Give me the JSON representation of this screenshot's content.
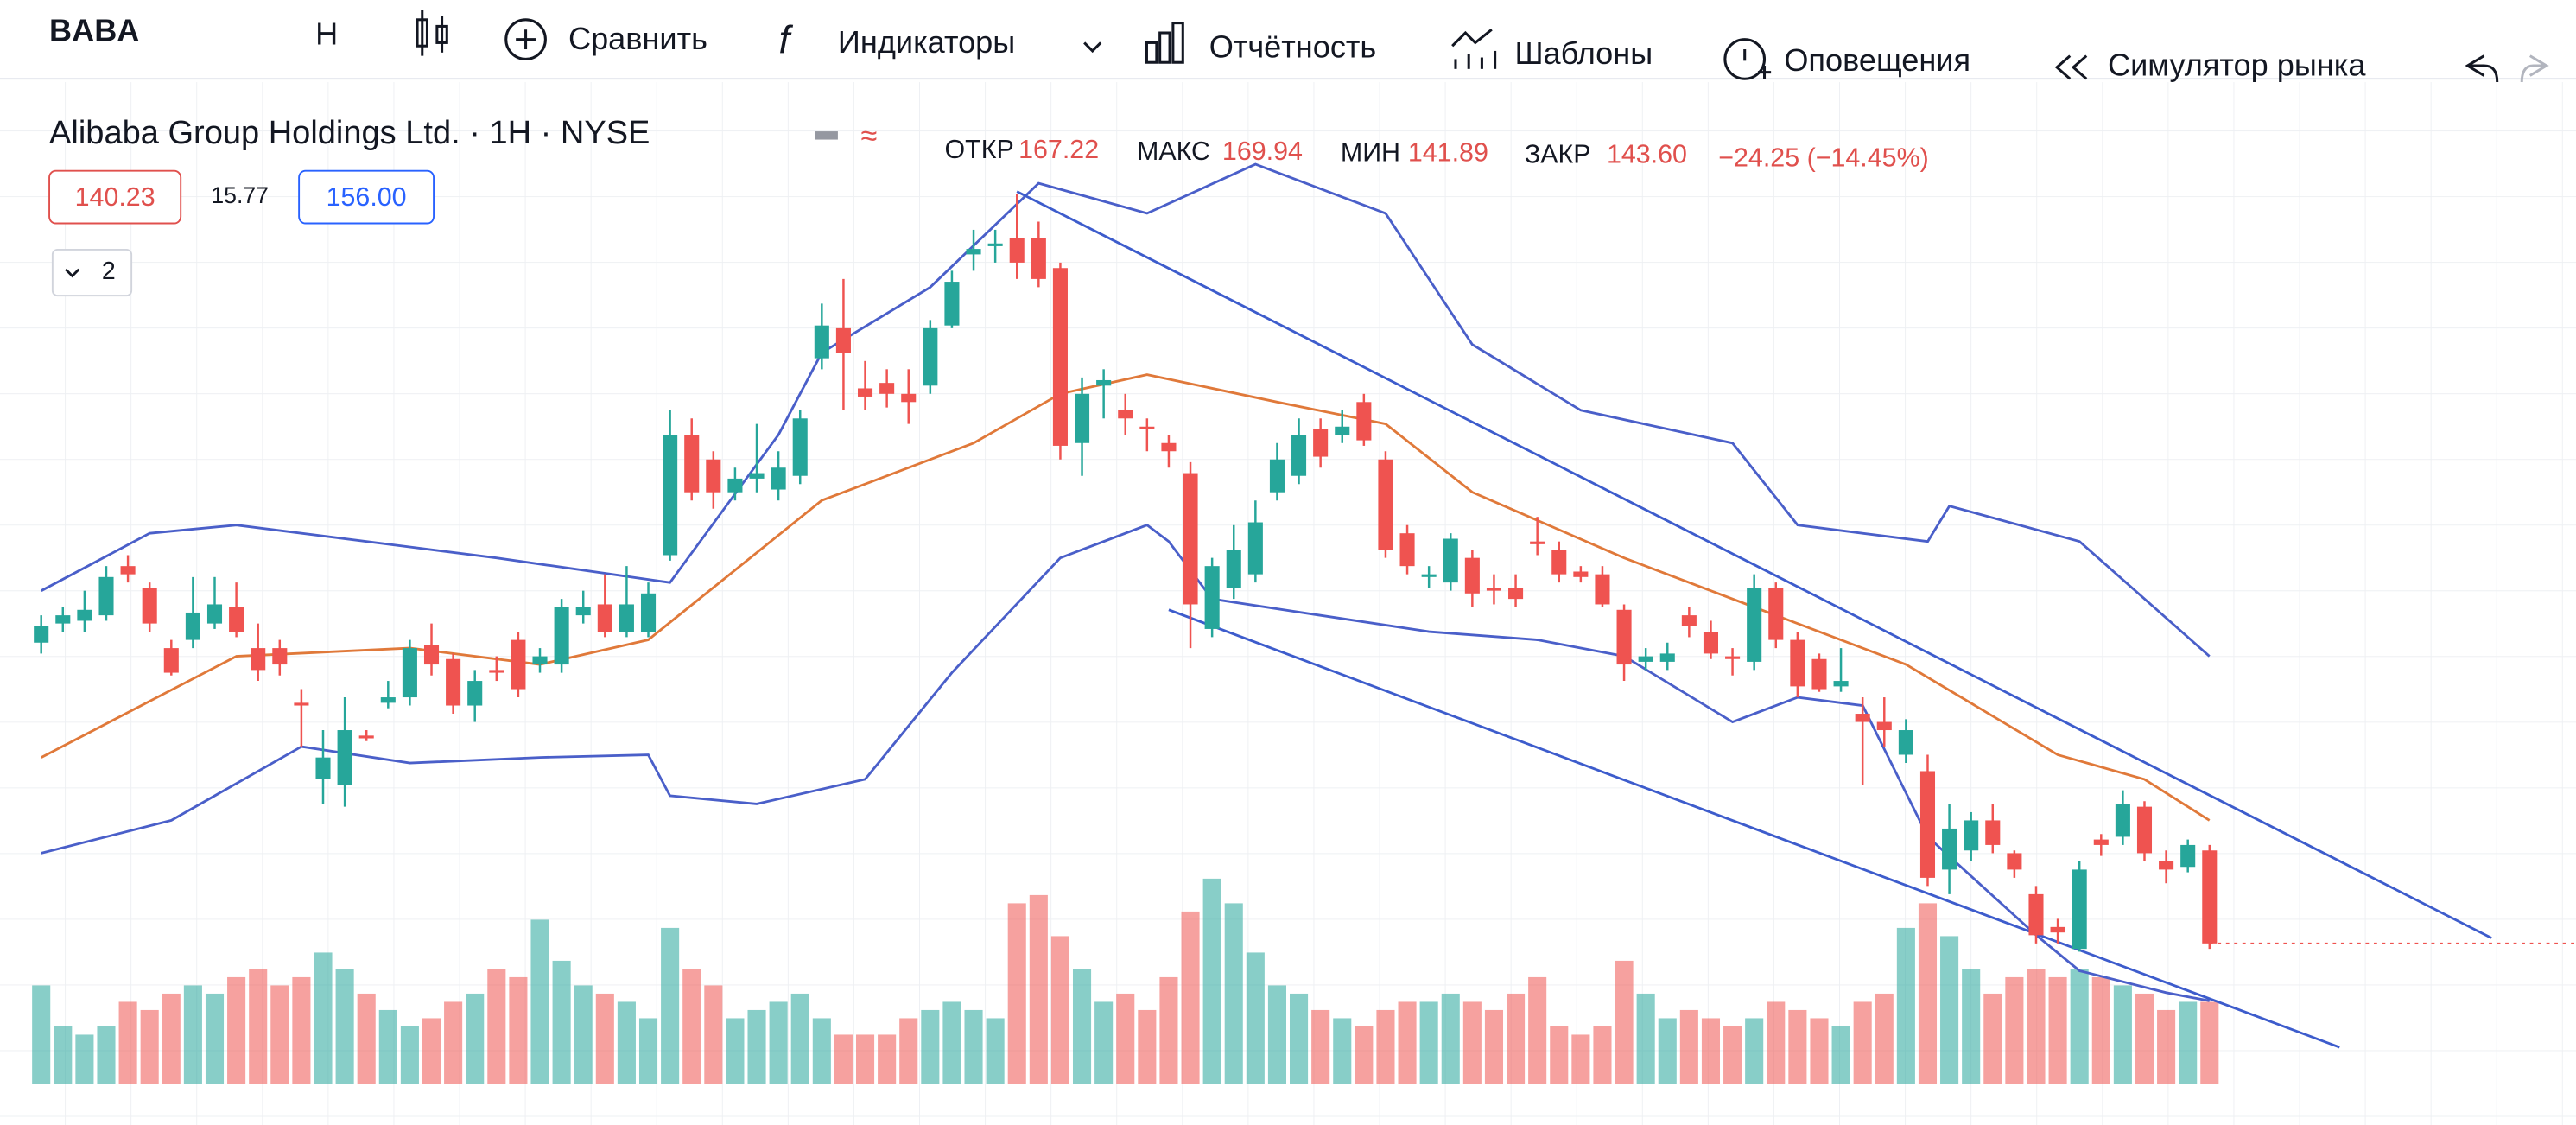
{
  "toolbar": {
    "symbol": "BABA",
    "interval": "H",
    "compare": "Сравнить",
    "indicators": "Индикаторы",
    "reports": "Отчётность",
    "templates": "Шаблоны",
    "alerts": "Оповещения",
    "replay": "Симулятор рынка"
  },
  "legend": {
    "title": "Alibaba Group Holdings Ltd. · 1H · NYSE",
    "open_label": "ОТКР",
    "open": "167.22",
    "high_label": "МАКС",
    "high": "169.94",
    "low_label": "МИН",
    "low": "141.89",
    "close_label": "ЗАКР",
    "close": "143.60",
    "change": "−24.25 (−14.45%)",
    "sell": "140.23",
    "spread": "15.77",
    "buy": "156.00",
    "indicators_count": "2"
  },
  "chart_data": {
    "type": "candlestick",
    "up_color": "#26a69a",
    "down_color": "#ef5350",
    "xlim": [
      -1.9,
      116.9
    ],
    "ylim": [
      137,
      173.4
    ],
    "volume_lim": [
      0,
      600
    ],
    "grid": true,
    "open": [
      153.5,
      154.2,
      154.3,
      154.5,
      156.3,
      155.5,
      153.3,
      153.6,
      154.2,
      154.8,
      153.3,
      153.3,
      151.3,
      148.5,
      148.3,
      150.1,
      151.3,
      151.5,
      153.4,
      152.9,
      151.2,
      152.5,
      153.6,
      152.7,
      152.7,
      154.5,
      154.9,
      153.9,
      153.9,
      156.7,
      161.1,
      160.2,
      159.0,
      159.5,
      159.1,
      159.6,
      163.9,
      165.0,
      162.8,
      163.0,
      162.6,
      162.9,
      165.1,
      167.7,
      168.0,
      168.3,
      168.3,
      167.2,
      160.8,
      162.9,
      162.0,
      161.4,
      160.8,
      159.7,
      154.0,
      155.5,
      156.0,
      159.0,
      159.6,
      161.3,
      161.1,
      162.3,
      160.2,
      157.5,
      155.9,
      155.7,
      156.6,
      155.5,
      155.5,
      157.2,
      156.9,
      156.1,
      156.0,
      154.7,
      152.8,
      152.8,
      154.5,
      153.9,
      153.0,
      152.8,
      155.5,
      153.6,
      152.9,
      151.9,
      150.9,
      150.6,
      149.4,
      148.8,
      145.2,
      145.9,
      147.0,
      145.8,
      144.3,
      143.1,
      142.3,
      146.3,
      146.4,
      147.5,
      145.5,
      145.3,
      145.9
    ],
    "high": [
      154.5,
      154.8,
      155.4,
      156.3,
      156.7,
      155.7,
      153.6,
      155.9,
      155.9,
      155.7,
      154.2,
      153.6,
      151.8,
      150.3,
      151.5,
      150.3,
      152.1,
      153.6,
      154.2,
      153.1,
      152.5,
      153.0,
      153.9,
      153.3,
      155.1,
      155.4,
      156.0,
      156.3,
      155.7,
      162.0,
      161.7,
      160.5,
      159.9,
      161.5,
      160.5,
      162.0,
      165.9,
      166.8,
      163.8,
      163.5,
      163.5,
      165.3,
      167.1,
      168.6,
      168.6,
      169.9,
      168.9,
      167.4,
      163.2,
      163.5,
      162.6,
      161.7,
      161.1,
      160.1,
      156.6,
      157.8,
      158.7,
      160.8,
      161.7,
      161.7,
      162.0,
      162.6,
      160.5,
      157.8,
      156.3,
      157.5,
      156.9,
      156.0,
      156.0,
      158.1,
      157.2,
      156.3,
      156.3,
      154.9,
      153.3,
      153.5,
      154.8,
      154.3,
      153.3,
      156.0,
      155.7,
      153.9,
      153.1,
      153.3,
      151.5,
      151.5,
      150.7,
      149.4,
      147.6,
      147.3,
      147.6,
      145.9,
      144.6,
      143.4,
      145.5,
      146.5,
      148.1,
      147.7,
      145.9,
      146.3,
      146.1
    ],
    "low": [
      153.1,
      153.9,
      153.9,
      154.3,
      155.7,
      153.9,
      152.3,
      153.3,
      154.0,
      153.7,
      152.1,
      152.3,
      149.7,
      147.6,
      147.5,
      149.9,
      151.1,
      151.2,
      152.3,
      150.9,
      150.6,
      152.1,
      151.5,
      152.4,
      152.4,
      154.2,
      153.7,
      153.7,
      153.7,
      156.5,
      158.7,
      158.4,
      158.7,
      159.0,
      158.7,
      159.3,
      163.5,
      162.0,
      162.0,
      162.1,
      161.5,
      162.6,
      165.0,
      167.1,
      167.4,
      166.8,
      166.5,
      160.2,
      159.6,
      161.7,
      161.1,
      160.5,
      159.9,
      153.3,
      153.7,
      155.1,
      155.7,
      158.7,
      159.3,
      159.9,
      160.8,
      160.7,
      156.6,
      156.0,
      155.5,
      155.4,
      154.8,
      154.9,
      154.8,
      156.7,
      155.7,
      155.7,
      154.8,
      152.1,
      152.5,
      152.5,
      153.7,
      152.9,
      152.3,
      152.5,
      153.3,
      151.5,
      151.7,
      151.7,
      148.3,
      149.7,
      149.1,
      144.6,
      144.3,
      145.5,
      145.8,
      144.9,
      142.5,
      142.5,
      142.2,
      145.7,
      146.1,
      145.5,
      144.7,
      145.1,
      142.3
    ],
    "close": [
      154.1,
      154.5,
      154.7,
      155.9,
      156.0,
      154.2,
      152.4,
      154.6,
      154.9,
      153.9,
      152.5,
      152.7,
      151.2,
      149.3,
      150.3,
      150.0,
      151.5,
      153.3,
      152.7,
      151.2,
      152.1,
      152.4,
      151.8,
      153.0,
      154.8,
      154.8,
      153.9,
      154.9,
      155.3,
      161.1,
      159.0,
      159.0,
      159.5,
      159.7,
      159.9,
      161.7,
      165.1,
      164.1,
      162.5,
      162.6,
      162.3,
      165.0,
      166.7,
      167.9,
      168.1,
      167.4,
      166.8,
      160.7,
      162.6,
      163.1,
      161.7,
      161.3,
      160.5,
      154.9,
      156.3,
      156.9,
      157.9,
      160.2,
      161.1,
      160.3,
      161.4,
      160.9,
      156.9,
      156.3,
      156.0,
      157.3,
      155.3,
      155.4,
      155.1,
      157.1,
      156.0,
      155.9,
      154.9,
      152.7,
      153.0,
      153.1,
      154.1,
      153.1,
      152.9,
      155.5,
      153.6,
      151.9,
      151.8,
      152.1,
      150.6,
      150.3,
      150.3,
      144.9,
      146.7,
      147.0,
      146.1,
      145.2,
      142.8,
      142.9,
      145.2,
      146.1,
      147.6,
      145.8,
      145.2,
      146.1,
      142.5
    ],
    "volume": [
      60,
      35,
      30,
      35,
      50,
      45,
      55,
      60,
      55,
      65,
      70,
      60,
      65,
      80,
      70,
      55,
      45,
      35,
      40,
      50,
      55,
      70,
      65,
      100,
      75,
      60,
      55,
      50,
      40,
      95,
      70,
      60,
      40,
      45,
      50,
      55,
      40,
      30,
      30,
      30,
      40,
      45,
      50,
      45,
      40,
      110,
      115,
      90,
      70,
      50,
      55,
      45,
      65,
      105,
      125,
      110,
      80,
      60,
      55,
      45,
      40,
      35,
      45,
      50,
      50,
      55,
      50,
      45,
      55,
      65,
      35,
      30,
      35,
      75,
      55,
      40,
      45,
      40,
      35,
      40,
      50,
      45,
      40,
      35,
      50,
      55,
      95,
      110,
      90,
      70,
      55,
      65,
      70,
      65,
      70,
      65,
      60,
      55,
      45,
      50,
      50
    ],
    "lines": [
      {
        "color": "#4a5fc9",
        "x": [
          0,
          5,
          9,
          21,
          29,
          34,
          36,
          41,
          46,
          51,
          56,
          62,
          66,
          71,
          78,
          81,
          87,
          88,
          94,
          100
        ],
        "values": [
          155.4,
          157.5,
          157.8,
          156.6,
          155.7,
          161.1,
          164.1,
          166.5,
          170.3,
          169.2,
          171.0,
          169.2,
          164.4,
          162.0,
          160.8,
          157.8,
          157.2,
          158.5,
          157.2,
          153.0
        ]
      },
      {
        "color": "#4a5fc9",
        "x": [
          0,
          6,
          12,
          17,
          23,
          28,
          29,
          33,
          38,
          42,
          47,
          51,
          52,
          54,
          59,
          64,
          69,
          73,
          78,
          81,
          84,
          87,
          92,
          94,
          98,
          100
        ],
        "values": [
          145.8,
          147.0,
          149.7,
          149.1,
          149.3,
          149.4,
          147.9,
          147.6,
          148.5,
          152.4,
          156.6,
          157.8,
          157.2,
          155.1,
          154.5,
          153.9,
          153.6,
          153.0,
          150.6,
          151.5,
          151.2,
          146.4,
          142.8,
          141.5,
          140.7,
          140.4
        ]
      },
      {
        "color": "#e0793a",
        "x": [
          0,
          9,
          17,
          23,
          28,
          36,
          43,
          47,
          51,
          57,
          62,
          66,
          73,
          80,
          86,
          93,
          97,
          100
        ],
        "values": [
          149.3,
          153.0,
          153.3,
          152.7,
          153.6,
          158.7,
          160.8,
          162.6,
          163.3,
          162.3,
          161.5,
          159.0,
          156.6,
          154.5,
          152.7,
          149.4,
          148.5,
          147.0
        ]
      },
      {
        "color": "#3d5ccc",
        "x": [
          45,
          113
        ],
        "values": [
          170.0,
          142.7
        ]
      },
      {
        "color": "#3d5ccc",
        "x": [
          52,
          106
        ],
        "values": [
          154.7,
          138.7
        ]
      }
    ]
  }
}
